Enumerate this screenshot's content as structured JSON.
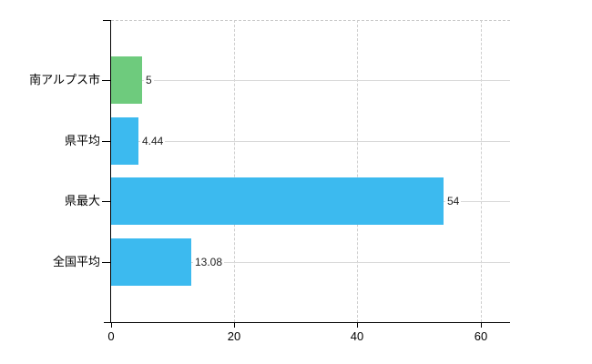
{
  "chart_data": {
    "type": "bar",
    "orientation": "horizontal",
    "title": "",
    "categories": [
      "南アルプス市",
      "県平均",
      "県最大",
      "全国平均"
    ],
    "values": [
      5,
      4.44,
      54,
      13.08
    ],
    "value_labels": [
      "5",
      "4.44",
      "54",
      "13.08"
    ],
    "bar_colors": [
      "#6ecb7d",
      "#3cbaef",
      "#3cbaef",
      "#3cbaef"
    ],
    "highlight_color": "#6ecb7d",
    "base_color": "#3cbaef",
    "xlabel": "",
    "ylabel": "",
    "xlim": [
      0,
      64.8
    ],
    "xticks": [
      0,
      20,
      40,
      60
    ],
    "xtick_labels": [
      "0",
      "20",
      "40",
      "60"
    ],
    "grid": true,
    "legend_position": "none",
    "colors": {
      "axis": "#000000",
      "grid_solid": "#d9d9d9",
      "grid_dashed": "#cfcfcf",
      "text": "#000000",
      "value_text": "#222222",
      "background": "#ffffff"
    }
  }
}
